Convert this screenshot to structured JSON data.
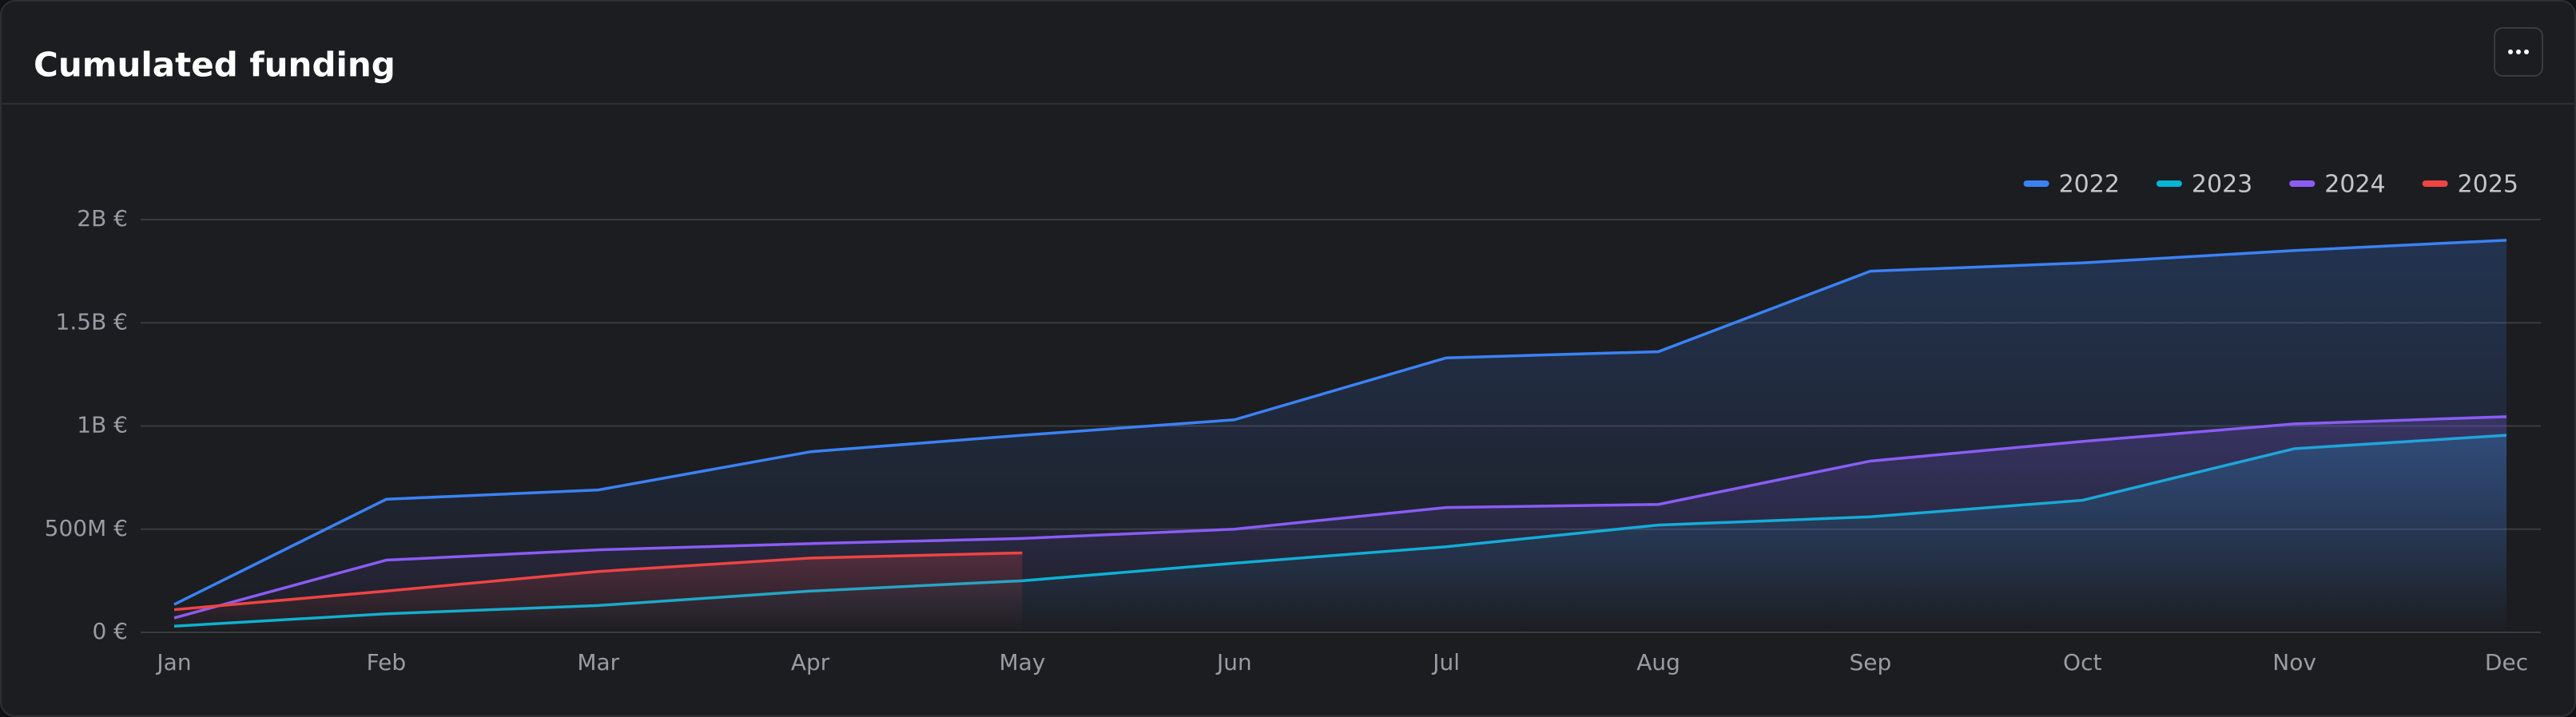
{
  "chart_data": {
    "type": "line",
    "title": "Cumulated funding",
    "categories": [
      "Jan",
      "Feb",
      "Mar",
      "Apr",
      "May",
      "Jun",
      "Jul",
      "Aug",
      "Sep",
      "Oct",
      "Nov",
      "Dec"
    ],
    "series": [
      {
        "name": "2022",
        "color": "#3b82f6",
        "values": [
          135000000,
          645000000,
          690000000,
          875000000,
          955000000,
          1030000000,
          1330000000,
          1360000000,
          1750000000,
          1790000000,
          1850000000,
          1900000000
        ]
      },
      {
        "name": "2023",
        "color": "#06b6d4",
        "values": [
          30000000,
          90000000,
          130000000,
          200000000,
          250000000,
          335000000,
          415000000,
          520000000,
          560000000,
          640000000,
          890000000,
          955000000
        ]
      },
      {
        "name": "2024",
        "color": "#8b5cf6",
        "values": [
          70000000,
          350000000,
          400000000,
          430000000,
          455000000,
          500000000,
          605000000,
          620000000,
          830000000,
          925000000,
          1010000000,
          1045000000
        ]
      },
      {
        "name": "2025",
        "color": "#ef4444",
        "values": [
          110000000,
          200000000,
          295000000,
          360000000,
          385000000,
          null,
          null,
          null,
          null,
          null,
          null,
          null
        ]
      }
    ],
    "ylim": [
      0,
      2000000000
    ],
    "yticks": [
      {
        "value": 0,
        "label": "0 €"
      },
      {
        "value": 500000000,
        "label": "500M €"
      },
      {
        "value": 1000000000,
        "label": "1B €"
      },
      {
        "value": 1500000000,
        "label": "1.5B €"
      },
      {
        "value": 2000000000,
        "label": "2B €"
      }
    ],
    "grid": true,
    "legend": "top-right"
  }
}
